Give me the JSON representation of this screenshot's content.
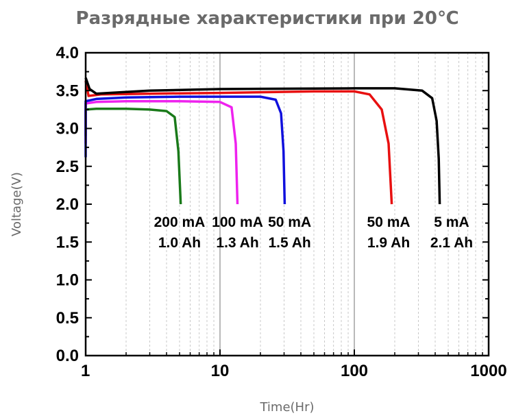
{
  "chart_data": {
    "type": "line",
    "title": "Разрядные характеристики при 20℃",
    "xlabel": "Time(Hr)",
    "ylabel": "Voltage(V)",
    "xscale": "log",
    "xlim": [
      1,
      1000
    ],
    "ylim": [
      0.0,
      4.0
    ],
    "x_ticks": [
      1,
      10,
      100,
      1000
    ],
    "x_tick_labels": [
      "1",
      "10",
      "100",
      "1000"
    ],
    "y_ticks": [
      0.0,
      0.5,
      1.0,
      1.5,
      2.0,
      2.5,
      3.0,
      3.5,
      4.0
    ],
    "y_tick_labels": [
      "0.0",
      "0.5",
      "1.0",
      "1.5",
      "2.0",
      "2.5",
      "3.0",
      "3.5",
      "4.0"
    ],
    "grid": "vertical dashed at minor ticks, solid gray at decades",
    "series": [
      {
        "color": "#1a7a1a",
        "points": [
          [
            1.0,
            2.9
          ],
          [
            1.0,
            3.25
          ],
          [
            1.2,
            3.26
          ],
          [
            2.0,
            3.26
          ],
          [
            3.0,
            3.25
          ],
          [
            4.0,
            3.23
          ],
          [
            4.6,
            3.15
          ],
          [
            4.9,
            2.7
          ],
          [
            5.1,
            2.0
          ]
        ]
      },
      {
        "color": "#ee22ee",
        "points": [
          [
            1.0,
            2.8
          ],
          [
            1.0,
            3.33
          ],
          [
            1.2,
            3.35
          ],
          [
            2.0,
            3.36
          ],
          [
            5.0,
            3.36
          ],
          [
            10.0,
            3.35
          ],
          [
            12.2,
            3.28
          ],
          [
            13.1,
            2.8
          ],
          [
            13.5,
            2.0
          ]
        ]
      },
      {
        "color": "#1010dd",
        "points": [
          [
            1.0,
            2.62
          ],
          [
            1.0,
            3.36
          ],
          [
            1.2,
            3.39
          ],
          [
            2.0,
            3.41
          ],
          [
            5.0,
            3.42
          ],
          [
            10.0,
            3.42
          ],
          [
            20.0,
            3.42
          ],
          [
            26.0,
            3.38
          ],
          [
            28.5,
            3.2
          ],
          [
            29.7,
            2.7
          ],
          [
            30.3,
            2.0
          ]
        ]
      },
      {
        "color": "#e81010",
        "points": [
          [
            1.0,
            3.63
          ],
          [
            1.05,
            3.43
          ],
          [
            1.3,
            3.45
          ],
          [
            3.0,
            3.46
          ],
          [
            10.0,
            3.47
          ],
          [
            50.0,
            3.49
          ],
          [
            100.0,
            3.49
          ],
          [
            130.0,
            3.45
          ],
          [
            160.0,
            3.25
          ],
          [
            180.0,
            2.8
          ],
          [
            190.0,
            2.0
          ]
        ]
      },
      {
        "color": "#000000",
        "points": [
          [
            1.0,
            3.67
          ],
          [
            1.07,
            3.52
          ],
          [
            1.2,
            3.46
          ],
          [
            1.5,
            3.47
          ],
          [
            3.0,
            3.5
          ],
          [
            10.0,
            3.52
          ],
          [
            100.0,
            3.53
          ],
          [
            200.0,
            3.53
          ],
          [
            320.0,
            3.5
          ],
          [
            380.0,
            3.4
          ],
          [
            410.0,
            3.1
          ],
          [
            425.0,
            2.6
          ],
          [
            432.0,
            2.0
          ]
        ]
      }
    ],
    "annotations": [
      {
        "lines": [
          "200 mA",
          "1.0 Ah"
        ],
        "x": 5.0,
        "y": 1.7
      },
      {
        "lines": [
          "100 mA",
          "1.3 Ah"
        ],
        "x": 13.5,
        "y": 1.7
      },
      {
        "lines": [
          "50 mA",
          "1.5 Ah"
        ],
        "x": 33.0,
        "y": 1.7
      },
      {
        "lines": [
          "50 mA",
          "1.9 Ah"
        ],
        "x": 180.0,
        "y": 1.7
      },
      {
        "lines": [
          "5 mA",
          "2.1 Ah"
        ],
        "x": 530.0,
        "y": 1.7
      }
    ]
  }
}
